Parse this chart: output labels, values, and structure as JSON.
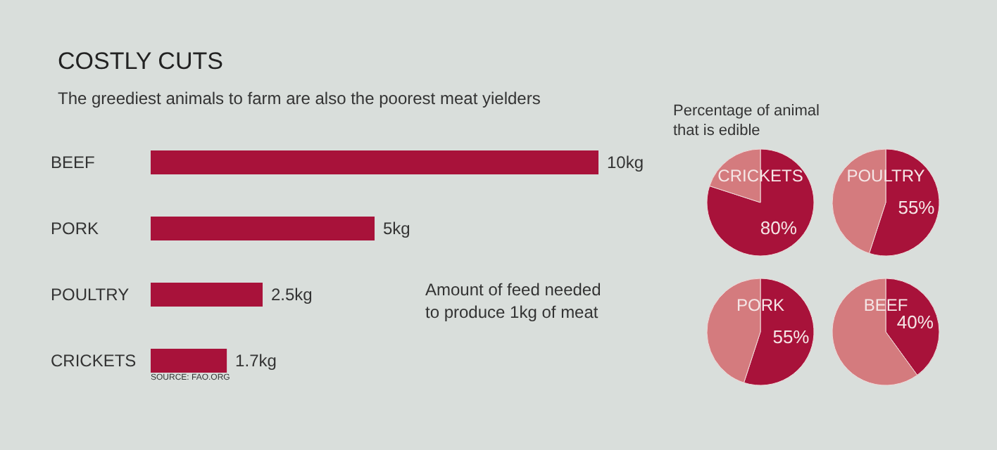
{
  "chart_data": [
    {
      "type": "bar",
      "orientation": "horizontal",
      "title": "COSTLY CUTS",
      "subtitle": "The greediest animals to farm are also the poorest meat yielders",
      "categories": [
        "BEEF",
        "PORK",
        "POULTRY",
        "CRICKETS"
      ],
      "values": [
        10,
        5,
        2.5,
        1.7
      ],
      "value_labels": [
        "10kg",
        "5kg",
        "2.5kg",
        "1.7kg"
      ],
      "color": "#a8123a",
      "tick_labels": "y",
      "annotations": [
        "Amount of feed needed to produce 1kg of meat",
        "SOURCE: FAO.ORG"
      ]
    },
    {
      "type": "other",
      "title": "Percentage of animal that is edible"
    },
    {
      "type": "pie",
      "title": "CRICKETS",
      "categories": [
        null,
        null
      ],
      "values": [
        80,
        20
      ],
      "value_labels": [
        "80%",
        null
      ],
      "colors": [
        "#a8123a",
        "#d47b7e"
      ]
    },
    {
      "type": "pie",
      "title": "POULTRY",
      "categories": [
        null,
        null
      ],
      "values": [
        55,
        45
      ],
      "value_labels": [
        "55%",
        null
      ],
      "colors": [
        "#a8123a",
        "#d47b7e"
      ]
    },
    {
      "type": "pie",
      "title": "PORK",
      "categories": [
        null,
        null
      ],
      "values": [
        55,
        45
      ],
      "value_labels": [
        "55%",
        null
      ],
      "colors": [
        "#a8123a",
        "#d47b7e"
      ]
    },
    {
      "type": "pie",
      "title": "BEEF",
      "categories": [
        null,
        null
      ],
      "values": [
        40,
        60
      ],
      "value_labels": [
        "40%",
        null
      ],
      "colors": [
        "#a8123a",
        "#d47b7e"
      ]
    }
  ]
}
